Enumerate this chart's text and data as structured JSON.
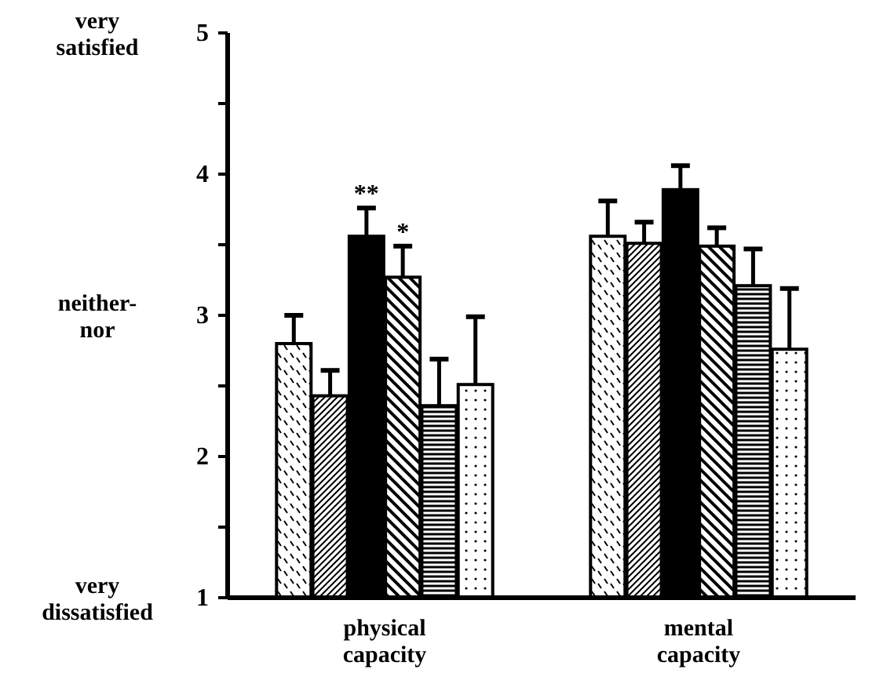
{
  "chart_data": {
    "type": "bar",
    "categories": [
      "physical capacity",
      "mental capacity"
    ],
    "series": [
      {
        "color": "#000000",
        "values": [
          2.8,
          3.56
        ],
        "errors": [
          [
            2.8,
            3.0
          ],
          [
            3.56,
            3.81
          ]
        ]
      },
      {
        "color": "#000000",
        "values": [
          2.43,
          3.51
        ],
        "errors": [
          [
            2.43,
            2.61
          ],
          [
            3.51,
            3.66
          ]
        ]
      },
      {
        "color": "#000000",
        "values": [
          3.56,
          3.89
        ],
        "errors": [
          [
            3.56,
            3.76
          ],
          [
            3.89,
            4.06
          ]
        ]
      },
      {
        "color": "#000000",
        "values": [
          3.27,
          3.49
        ],
        "errors": [
          [
            3.27,
            3.49
          ],
          [
            3.49,
            3.62
          ]
        ]
      },
      {
        "color": "#000000",
        "values": [
          2.36,
          3.21
        ],
        "errors": [
          [
            2.36,
            2.69
          ],
          [
            3.21,
            3.47
          ]
        ]
      },
      {
        "color": "#000000",
        "values": [
          2.51,
          2.76
        ],
        "errors": [
          [
            2.51,
            2.99
          ],
          [
            2.76,
            3.19
          ]
        ]
      }
    ],
    "ylim": [
      1,
      5
    ],
    "yticks": [
      1,
      {
        "value": 1.5,
        "label": null
      },
      2,
      {
        "value": 2.5,
        "label": null
      },
      3,
      {
        "value": 3.5,
        "label": null
      },
      4,
      {
        "value": 4.5,
        "label": null
      },
      5
    ],
    "annotations": [
      "very satisfied",
      "neither- nor",
      "very dissatisfied",
      "**",
      "*"
    ]
  }
}
